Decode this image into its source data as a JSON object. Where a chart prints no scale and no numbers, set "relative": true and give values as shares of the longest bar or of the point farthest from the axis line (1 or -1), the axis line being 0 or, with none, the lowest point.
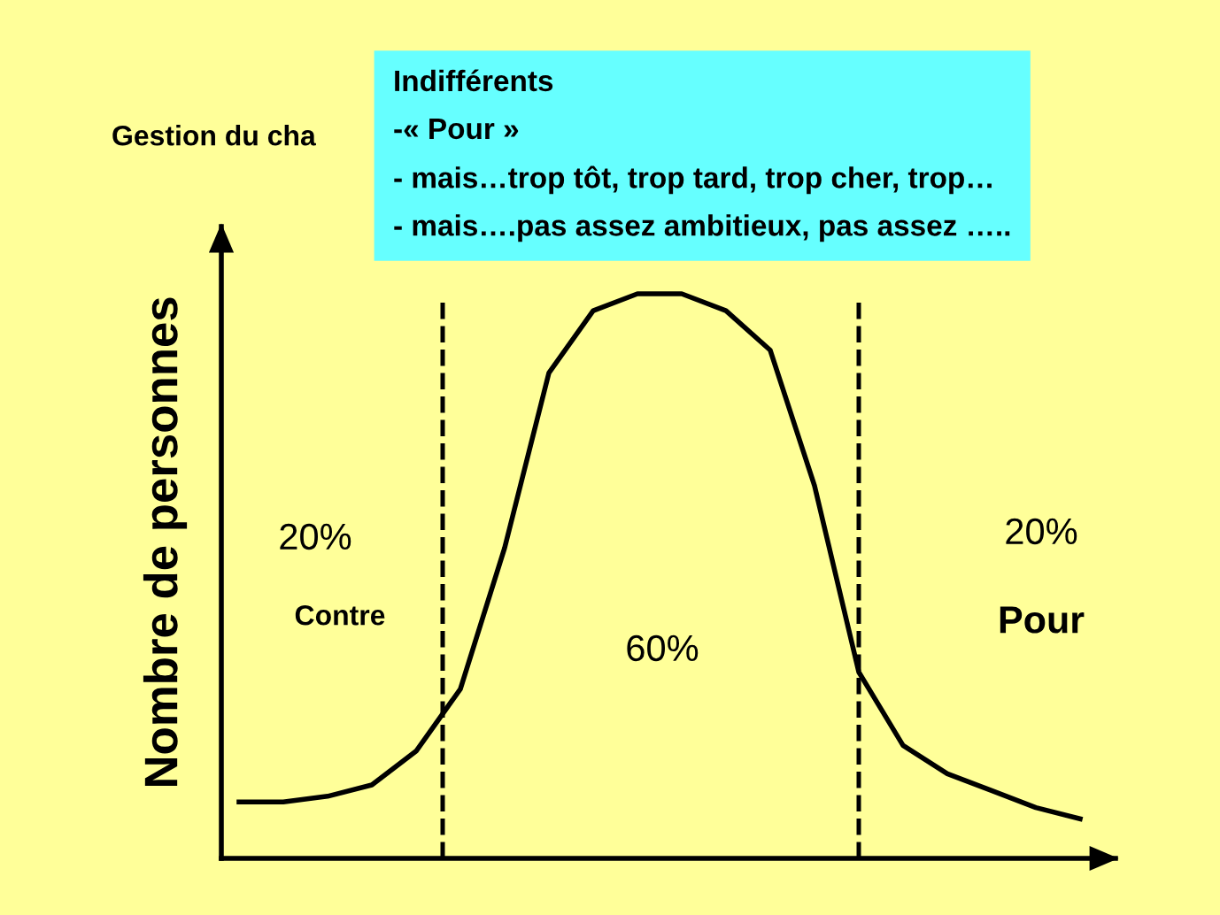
{
  "chart_data": {
    "type": "line",
    "relative": true,
    "title": "Gestion du cha",
    "ylabel": "Nombre de personnes",
    "categories": [
      null,
      null,
      null,
      null,
      null,
      null,
      null,
      null,
      null,
      null,
      null,
      null,
      null,
      null,
      null,
      null,
      null,
      null,
      null,
      null
    ],
    "series": [
      {
        "color": "#000000",
        "values": [
          0.1,
          0.1,
          0.11,
          0.13,
          0.19,
          0.3,
          0.55,
          0.86,
          0.97,
          1,
          1,
          0.97,
          0.9,
          0.66,
          0.33,
          0.2,
          0.15,
          0.12,
          0.09,
          0.07
        ]
      }
    ],
    "annotations": [
      "20%",
      "Contre",
      "60%",
      "20%",
      "Pour",
      "Indifférents\n-« Pour »\n- mais…trop tôt, trop tard, trop cher, trop…\n- mais….pas assez ambitieux, pas assez ….."
    ],
    "marker": "none",
    "line_style": "solid"
  }
}
